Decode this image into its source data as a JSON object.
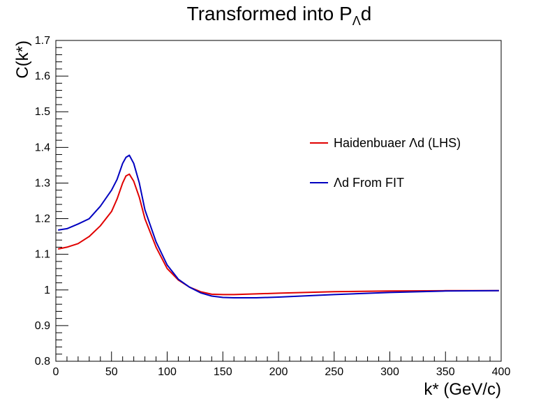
{
  "chart_data": {
    "type": "line",
    "title": "Transformed into P",
    "title_sub": "Λ",
    "title_suffix": "d",
    "xlabel": "k* (GeV/c)",
    "ylabel": "C(k*)",
    "xlim": [
      0,
      400
    ],
    "ylim": [
      0.8,
      1.7
    ],
    "x_ticks": [
      0,
      50,
      100,
      150,
      200,
      250,
      300,
      350,
      400
    ],
    "y_ticks": [
      0.8,
      0.9,
      1,
      1.1,
      1.2,
      1.3,
      1.4,
      1.5,
      1.6,
      1.7
    ],
    "grid": false,
    "legend_position": "right",
    "series": [
      {
        "name": "Haidenbuaer Λd (LHS)",
        "color": "#e00000",
        "x": [
          2,
          10,
          20,
          30,
          40,
          50,
          55,
          60,
          63,
          66,
          70,
          75,
          80,
          90,
          100,
          110,
          120,
          130,
          140,
          150,
          160,
          180,
          200,
          250,
          300,
          350,
          398
        ],
        "y": [
          1.115,
          1.12,
          1.13,
          1.15,
          1.18,
          1.22,
          1.255,
          1.3,
          1.32,
          1.325,
          1.305,
          1.26,
          1.2,
          1.12,
          1.06,
          1.028,
          1.008,
          0.995,
          0.988,
          0.987,
          0.987,
          0.989,
          0.991,
          0.995,
          0.997,
          0.998,
          0.998
        ]
      },
      {
        "name": "Λd From FIT",
        "color": "#0000c0",
        "x": [
          2,
          10,
          20,
          30,
          40,
          50,
          55,
          60,
          63,
          66,
          70,
          75,
          80,
          90,
          100,
          110,
          120,
          130,
          140,
          150,
          160,
          180,
          200,
          250,
          300,
          350,
          398
        ],
        "y": [
          1.168,
          1.172,
          1.185,
          1.2,
          1.235,
          1.28,
          1.31,
          1.355,
          1.372,
          1.378,
          1.355,
          1.3,
          1.225,
          1.135,
          1.07,
          1.03,
          1.008,
          0.992,
          0.983,
          0.979,
          0.978,
          0.978,
          0.98,
          0.987,
          0.993,
          0.997,
          0.998
        ]
      }
    ]
  }
}
